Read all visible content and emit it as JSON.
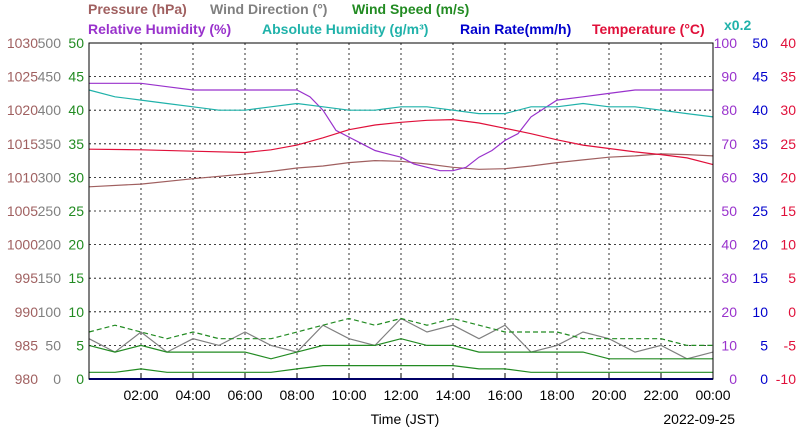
{
  "chart_data": {
    "type": "line",
    "date": "2022-09-25",
    "xlabel": "Time (JST)",
    "x_ticks": [
      "02:00",
      "04:00",
      "06:00",
      "08:00",
      "10:00",
      "12:00",
      "14:00",
      "16:00",
      "18:00",
      "20:00",
      "22:00",
      "00:00"
    ],
    "grid": true,
    "legend": {
      "line1": [
        {
          "label": "Pressure (hPa)",
          "color": "#a06060"
        },
        {
          "label": "Wind Direction (°)",
          "color": "#808080"
        },
        {
          "label": "Wind Speed (m/s)",
          "color": "#228b22"
        }
      ],
      "line2": [
        {
          "label": "Relative Humidity (%)",
          "color": "#9932cc"
        },
        {
          "label": "Absolute Humidity (g/m³)",
          "color": "#20b2aa"
        },
        {
          "label": "Rain Rate(mm/h)",
          "color": "#0000cd"
        },
        {
          "label": "Temperature (°C)",
          "color": "#e0103a"
        }
      ],
      "scale_note": "x0.2"
    },
    "axes": {
      "pressure": {
        "label": "Pressure (hPa)",
        "color": "#a06060",
        "range": [
          980,
          1030
        ],
        "ticks": [
          "1030",
          "1025",
          "1020",
          "1015",
          "1010",
          "1005",
          "1000",
          "995",
          "990",
          "985",
          "980"
        ]
      },
      "wind_direction": {
        "label": "Wind Direction (°)",
        "color": "#808080",
        "range": [
          0,
          500
        ],
        "ticks": [
          "500",
          "450",
          "400",
          "350",
          "300",
          "250",
          "200",
          "150",
          "100",
          "50",
          "0"
        ]
      },
      "wind_speed": {
        "label": "Wind Speed (m/s)",
        "color": "#228b22",
        "range": [
          0,
          50
        ],
        "ticks": [
          "50",
          "45",
          "40",
          "35",
          "30",
          "25",
          "20",
          "15",
          "10",
          "5",
          "0"
        ]
      },
      "humidity": {
        "label": "Relative Humidity (%)",
        "color": "#9932cc",
        "range": [
          0,
          100
        ],
        "ticks": [
          "100",
          "90",
          "80",
          "70",
          "60",
          "50",
          "40",
          "30",
          "20",
          "10",
          "0"
        ]
      },
      "rain_rate": {
        "label": "Rain Rate(mm/h)",
        "color": "#0000cd",
        "range": [
          0,
          50
        ],
        "ticks": [
          "50",
          "45",
          "40",
          "35",
          "30",
          "25",
          "20",
          "15",
          "10",
          "5",
          "0"
        ]
      },
      "temperature": {
        "label": "Temperature (°C)",
        "color": "#e0103a",
        "range": [
          -10,
          40
        ],
        "ticks": [
          "40",
          "35",
          "30",
          "25",
          "20",
          "15",
          "10",
          "5",
          "0",
          "-5",
          "-10"
        ]
      }
    },
    "series": [
      {
        "name": "Pressure (hPa)",
        "axis": "pressure",
        "color": "#a06060",
        "x": [
          0,
          2,
          4,
          6,
          7,
          8,
          9,
          10,
          11,
          12,
          13,
          14,
          15,
          16,
          17,
          18,
          19,
          20,
          21,
          22,
          23,
          24
        ],
        "y": [
          1008.6,
          1009,
          1009.8,
          1010.5,
          1010.9,
          1011.4,
          1011.7,
          1012.2,
          1012.5,
          1012.4,
          1012.0,
          1011.5,
          1011.2,
          1011.3,
          1011.7,
          1012.2,
          1012.6,
          1013.0,
          1013.2,
          1013.5,
          1013.4,
          1013.2
        ]
      },
      {
        "name": "Relative Humidity (%)",
        "axis": "humidity",
        "color": "#9932cc",
        "x": [
          0,
          2,
          3,
          4,
          5,
          6,
          7,
          8,
          8.5,
          9,
          9.5,
          10,
          10.5,
          11,
          11.5,
          12,
          12.5,
          13,
          13.5,
          14,
          14.5,
          15,
          15.5,
          16,
          16.5,
          17,
          18,
          19,
          20,
          21,
          22,
          23,
          24
        ],
        "y": [
          88,
          88,
          87,
          86,
          86,
          86,
          86,
          86,
          84,
          80,
          74,
          72,
          70,
          68,
          67,
          66,
          64,
          63,
          62,
          62,
          63,
          66,
          68,
          71,
          73,
          78,
          83,
          84,
          85,
          86,
          86,
          86,
          86
        ]
      },
      {
        "name": "Absolute Humidity (g/m³)",
        "axis": "humidity",
        "color": "#20b2aa",
        "x": [
          0,
          1,
          2,
          3,
          4,
          5,
          6,
          7,
          8,
          9,
          10,
          11,
          12,
          13,
          14,
          15,
          16,
          17,
          18,
          19,
          20,
          21,
          22,
          23,
          24
        ],
        "y": [
          86,
          84,
          83,
          82,
          81,
          80,
          80,
          81,
          82,
          81,
          80,
          80,
          81,
          81,
          80,
          79,
          79,
          81,
          81,
          82,
          81,
          81,
          80,
          79,
          78
        ]
      },
      {
        "name": "Temperature (°C)",
        "axis": "temperature",
        "color": "#e0103a",
        "x": [
          0,
          2,
          4,
          6,
          7,
          8,
          9,
          10,
          11,
          12,
          13,
          14,
          15,
          16,
          17,
          18,
          19,
          20,
          21,
          22,
          23,
          24
        ],
        "y": [
          24.2,
          24.1,
          23.9,
          23.7,
          24.1,
          24.8,
          25.9,
          27.1,
          27.8,
          28.2,
          28.5,
          28.6,
          28.1,
          27.3,
          26.5,
          25.6,
          24.8,
          24.3,
          23.8,
          23.4,
          22.9,
          21.9
        ]
      },
      {
        "name": "Wind Direction (°)",
        "axis": "wind_direction",
        "color": "#808080",
        "x": [
          0,
          1,
          2,
          3,
          4,
          5,
          6,
          7,
          8,
          9,
          10,
          11,
          12,
          13,
          14,
          15,
          16,
          17,
          18,
          19,
          20,
          21,
          22,
          23,
          24
        ],
        "y": [
          60,
          40,
          70,
          40,
          60,
          50,
          70,
          50,
          40,
          80,
          60,
          50,
          90,
          70,
          80,
          60,
          80,
          40,
          50,
          70,
          60,
          40,
          50,
          30,
          40
        ]
      },
      {
        "name": "Wind Speed (m/s)",
        "axis": "wind_speed",
        "color": "#228b22",
        "x": [
          0,
          1,
          2,
          3,
          4,
          5,
          6,
          7,
          8,
          9,
          10,
          11,
          12,
          13,
          14,
          15,
          16,
          17,
          18,
          19,
          20,
          21,
          22,
          23,
          24
        ],
        "y": [
          5,
          4,
          5,
          4,
          4,
          4,
          4,
          3,
          4,
          5,
          5,
          5,
          6,
          5,
          5,
          4,
          4,
          4,
          4,
          4,
          3,
          3,
          3,
          3,
          3
        ]
      },
      {
        "name": "Wind Speed (m/s)",
        "axis": "wind_speed",
        "color": "#228b22",
        "dashed": true,
        "x": [
          0,
          1,
          2,
          3,
          4,
          5,
          6,
          7,
          8,
          9,
          10,
          11,
          12,
          13,
          14,
          15,
          16,
          17,
          18,
          19,
          20,
          21,
          22,
          23,
          24
        ],
        "y": [
          7,
          8,
          7,
          6,
          7,
          6,
          6,
          6,
          7,
          8,
          9,
          8,
          9,
          8,
          9,
          8,
          7,
          7,
          7,
          6,
          6,
          6,
          6,
          5,
          5
        ]
      },
      {
        "name": "Wind Speed (m/s)",
        "axis": "wind_speed",
        "color": "#228b22",
        "x": [
          0,
          1,
          2,
          3,
          4,
          5,
          6,
          7,
          8,
          9,
          10,
          11,
          12,
          13,
          14,
          15,
          16,
          17,
          18,
          19,
          20,
          21,
          22,
          23,
          24
        ],
        "y": [
          1,
          1,
          1.5,
          1,
          1,
          1,
          1,
          1,
          1.5,
          2,
          2,
          2,
          2,
          2,
          2,
          1.5,
          1.5,
          1,
          1,
          1,
          1,
          1,
          1,
          1,
          1
        ]
      }
    ]
  }
}
